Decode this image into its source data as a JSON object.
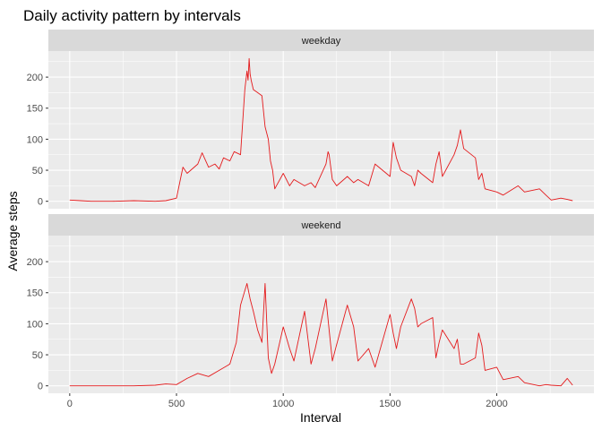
{
  "chart_data": {
    "type": "line",
    "title": "Daily activity pattern by intervals",
    "xlabel": "Interval",
    "ylabel": "Average steps",
    "xlim": [
      -100,
      2455
    ],
    "ylim": [
      -12,
      242
    ],
    "x_ticks": [
      0,
      500,
      1000,
      1500,
      2000
    ],
    "x_tick_labels": [
      "0",
      "500",
      "1000",
      "1500",
      "2000"
    ],
    "y_ticks": [
      0,
      50,
      100,
      150,
      200
    ],
    "y_tick_labels": [
      "0",
      "50",
      "100",
      "150",
      "200"
    ],
    "grid": true,
    "legend": "none",
    "line_color": "#E41A1C",
    "panel_background": "#EBEBEB",
    "strip_background": "#D9D9D9",
    "series": [
      {
        "name": "weekday",
        "x": [
          0,
          50,
          100,
          200,
          300,
          400,
          450,
          500,
          530,
          550,
          600,
          620,
          650,
          680,
          700,
          720,
          750,
          770,
          800,
          820,
          830,
          835,
          840,
          845,
          850,
          860,
          880,
          900,
          915,
          930,
          940,
          950,
          960,
          1000,
          1030,
          1050,
          1100,
          1130,
          1150,
          1200,
          1210,
          1215,
          1230,
          1250,
          1300,
          1330,
          1350,
          1400,
          1430,
          1500,
          1515,
          1530,
          1550,
          1600,
          1615,
          1630,
          1645,
          1700,
          1715,
          1730,
          1745,
          1800,
          1815,
          1830,
          1845,
          1900,
          1915,
          1930,
          1945,
          2000,
          2030,
          2100,
          2130,
          2200,
          2230,
          2255,
          2300,
          2330,
          2355
        ],
        "values": [
          2,
          1,
          0,
          0,
          1,
          0,
          1,
          5,
          55,
          45,
          60,
          78,
          55,
          60,
          52,
          70,
          65,
          80,
          75,
          180,
          210,
          195,
          230,
          205,
          195,
          180,
          175,
          170,
          120,
          100,
          65,
          50,
          20,
          45,
          25,
          35,
          25,
          30,
          22,
          60,
          80,
          75,
          35,
          25,
          40,
          30,
          35,
          25,
          60,
          40,
          95,
          70,
          50,
          40,
          25,
          50,
          45,
          30,
          60,
          80,
          40,
          75,
          90,
          115,
          85,
          70,
          35,
          45,
          20,
          15,
          10,
          25,
          15,
          20,
          10,
          2,
          5,
          3,
          1
        ]
      },
      {
        "name": "weekend",
        "x": [
          0,
          50,
          100,
          200,
          300,
          400,
          450,
          500,
          530,
          550,
          600,
          650,
          700,
          750,
          780,
          800,
          830,
          845,
          860,
          880,
          900,
          915,
          930,
          945,
          960,
          1000,
          1030,
          1050,
          1100,
          1130,
          1150,
          1200,
          1215,
          1230,
          1245,
          1300,
          1330,
          1350,
          1400,
          1430,
          1500,
          1515,
          1530,
          1550,
          1600,
          1615,
          1630,
          1645,
          1700,
          1715,
          1730,
          1745,
          1800,
          1815,
          1830,
          1845,
          1900,
          1915,
          1930,
          1945,
          2000,
          2030,
          2100,
          2130,
          2200,
          2230,
          2255,
          2300,
          2330,
          2355
        ],
        "values": [
          0,
          0,
          0,
          0,
          0,
          1,
          3,
          2,
          8,
          12,
          20,
          15,
          25,
          35,
          70,
          130,
          165,
          140,
          120,
          90,
          70,
          165,
          45,
          20,
          35,
          95,
          60,
          40,
          120,
          35,
          60,
          140,
          90,
          40,
          60,
          130,
          95,
          40,
          60,
          30,
          115,
          85,
          60,
          95,
          140,
          125,
          95,
          100,
          110,
          45,
          70,
          90,
          60,
          75,
          35,
          35,
          45,
          85,
          65,
          25,
          30,
          10,
          15,
          5,
          0,
          2,
          1,
          0,
          12,
          1
        ]
      }
    ]
  }
}
